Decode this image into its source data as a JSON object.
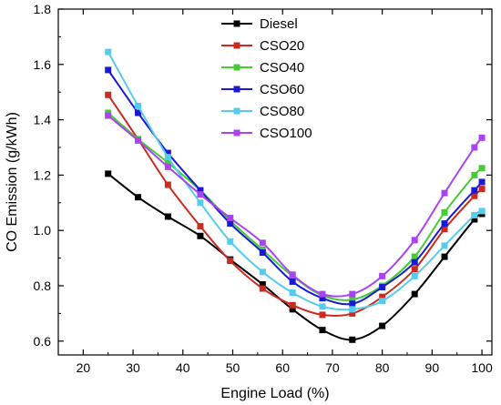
{
  "chart_data": {
    "type": "line",
    "title": "",
    "xlabel": "Engine Load (%)",
    "ylabel": "CO Emission (g/kWh)",
    "xlim": [
      15,
      102
    ],
    "ylim": [
      0.55,
      1.8
    ],
    "xticks": [
      20,
      30,
      40,
      50,
      60,
      70,
      80,
      90,
      100
    ],
    "yticks": [
      0.6,
      0.8,
      1.0,
      1.2,
      1.4,
      1.6,
      1.8
    ],
    "xtick_labels": [
      "20",
      "30",
      "40",
      "50",
      "60",
      "70",
      "80",
      "90",
      "100"
    ],
    "ytick_labels": [
      "0.6",
      "0.8",
      "1.0",
      "1.2",
      "1.4",
      "1.6",
      "1.8"
    ],
    "grid": false,
    "legend_position": "top-center",
    "x": [
      25,
      31,
      37,
      43.5,
      49.5,
      56,
      62,
      68,
      74,
      80,
      86.5,
      92.5,
      98.5,
      100
    ],
    "series": [
      {
        "name": "Diesel",
        "color": "#000000",
        "values": [
          1.205,
          1.12,
          1.05,
          0.98,
          0.895,
          0.805,
          0.715,
          0.64,
          0.605,
          0.655,
          0.77,
          0.905,
          1.04,
          1.06
        ]
      },
      {
        "name": "CSO20",
        "color": "#cc2a1e",
        "values": [
          1.49,
          1.33,
          1.165,
          1.015,
          0.89,
          0.79,
          0.73,
          0.695,
          0.7,
          0.76,
          0.86,
          1.005,
          1.125,
          1.15
        ]
      },
      {
        "name": "CSO40",
        "color": "#44cc33",
        "values": [
          1.425,
          1.33,
          1.245,
          1.145,
          1.035,
          0.93,
          0.835,
          0.765,
          0.75,
          0.8,
          0.905,
          1.065,
          1.2,
          1.225
        ]
      },
      {
        "name": "CSO60",
        "color": "#1a1ad6",
        "values": [
          1.58,
          1.425,
          1.28,
          1.145,
          1.025,
          0.92,
          0.815,
          0.755,
          0.735,
          0.795,
          0.885,
          1.025,
          1.145,
          1.175
        ]
      },
      {
        "name": "CSO80",
        "color": "#55ccee",
        "values": [
          1.645,
          1.45,
          1.265,
          1.1,
          0.96,
          0.85,
          0.775,
          0.725,
          0.715,
          0.745,
          0.835,
          0.945,
          1.055,
          1.07
        ]
      },
      {
        "name": "CSO100",
        "color": "#aa44ee",
        "values": [
          1.415,
          1.325,
          1.23,
          1.13,
          1.045,
          0.955,
          0.84,
          0.77,
          0.77,
          0.835,
          0.965,
          1.135,
          1.3,
          1.335
        ]
      }
    ]
  }
}
